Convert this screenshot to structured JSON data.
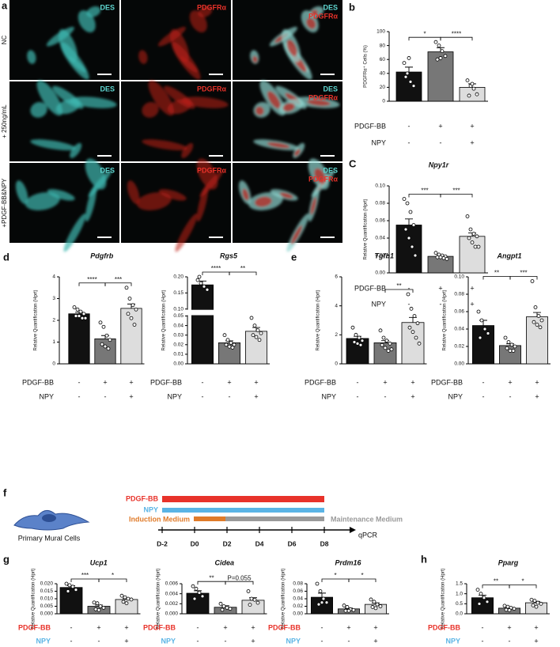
{
  "panel_labels": [
    "a",
    "b",
    "C",
    "d",
    "e",
    "f",
    "g",
    "h"
  ],
  "images": {
    "row_labels": [
      "NC",
      "+ 250ng/mL",
      "+PDGF-BB&NPY"
    ],
    "channels": [
      {
        "name": "DES",
        "color": "#5fd6d0"
      },
      {
        "name": "PDGFRα",
        "color": "#e8322a"
      }
    ]
  },
  "timeline": {
    "treatments": [
      {
        "name": "PDGF-BB",
        "color": "#e8322a"
      },
      {
        "name": "NPY",
        "color": "#5ab4e5"
      }
    ],
    "media": [
      {
        "name": "Induction Medium",
        "color": "#e07b2a"
      },
      {
        "name": "Maintenance Medium",
        "color": "#9a9a9a"
      }
    ],
    "days": [
      "D-2",
      "D0",
      "D2",
      "D4",
      "D6",
      "D8"
    ],
    "endpoint": "qPCR",
    "cell_label": "Primary Mural Cells"
  },
  "chart_data": [
    {
      "type": "bar",
      "ylabel": "PDGFRα⁺ Cells (%)",
      "colors": [
        "#111111",
        "#777777",
        "#dddddd"
      ],
      "values": [
        42,
        71,
        20
      ],
      "errors": [
        7,
        6,
        5
      ],
      "points": [
        [
          55,
          40,
          28,
          22,
          35,
          62
        ],
        [
          85,
          80,
          72,
          65,
          60,
          62
        ],
        [
          30,
          22,
          18,
          10,
          8,
          25
        ]
      ],
      "ylim": [
        0,
        100
      ],
      "yticks": [
        0,
        20,
        40,
        60,
        80,
        100
      ],
      "significance": [
        "*",
        "****"
      ],
      "conditions": [
        {
          "name": "PDGF-BB",
          "values": [
            "-",
            "+",
            "+"
          ]
        },
        {
          "name": "NPY",
          "values": [
            "-",
            "-",
            "+"
          ]
        }
      ]
    },
    {
      "type": "bar",
      "title": "Npy1r",
      "ylabel": "Relative Quantification (Hprt)",
      "colors": [
        "#111111",
        "#777777",
        "#dddddd"
      ],
      "values": [
        0.055,
        0.019,
        0.042
      ],
      "errors": [
        0.007,
        0.001,
        0.004
      ],
      "points": [
        [
          0.085,
          0.08,
          0.07,
          0.055,
          0.05,
          0.04,
          0.03,
          0.02
        ],
        [
          0.023,
          0.021,
          0.02,
          0.019,
          0.018,
          0.018,
          0.017,
          0.016
        ],
        [
          0.065,
          0.05,
          0.045,
          0.042,
          0.04,
          0.035,
          0.03,
          0.03
        ]
      ],
      "ylim": [
        0,
        0.1
      ],
      "yticks": [
        {
          "value": 0,
          "label": "0.00"
        },
        0.02,
        0.04,
        0.06,
        0.08,
        {
          "value": 0.1,
          "label": "0.10"
        }
      ],
      "significance": [
        "***",
        "***"
      ],
      "conditions": [
        {
          "name": "PDGF-BB",
          "values": [
            "-",
            "+",
            "+"
          ]
        },
        {
          "name": "NPY",
          "values": [
            "-",
            "-",
            "+"
          ]
        }
      ]
    },
    {
      "type": "bar",
      "title": "Pdgfrb",
      "ylabel": "Relative Quantification (Hprt)",
      "colors": [
        "#111111",
        "#777777",
        "#dddddd"
      ],
      "values": [
        2.3,
        1.15,
        2.55
      ],
      "errors": [
        0.07,
        0.15,
        0.2
      ],
      "points": [
        [
          2.6,
          2.5,
          2.4,
          2.3,
          2.2,
          2.2,
          2.1,
          2.1
        ],
        [
          1.9,
          1.7,
          1.3,
          1.1,
          0.9,
          0.8,
          0.7
        ],
        [
          3.5,
          3.0,
          2.7,
          2.5,
          2.3,
          2.1,
          1.8
        ]
      ],
      "ylim": [
        0,
        4
      ],
      "yticks": [
        0,
        1,
        2,
        3,
        4
      ],
      "significance": [
        "****",
        "***"
      ],
      "conditions": [
        {
          "name": "PDGF-BB",
          "values": [
            "-",
            "+",
            "+"
          ]
        },
        {
          "name": "NPY",
          "values": [
            "-",
            "-",
            "+"
          ]
        }
      ]
    },
    {
      "type": "bar",
      "title": "Rgs5",
      "ylabel": "Relative Quantification (Hprt)",
      "colors": [
        "#111111",
        "#777777",
        "#dddddd"
      ],
      "values": [
        0.175,
        0.022,
        0.034
      ],
      "errors": [
        0.012,
        0.002,
        0.004
      ],
      "points": [
        [
          0.19,
          0.18,
          0.17,
          0.16,
          0.2
        ],
        [
          0.03,
          0.025,
          0.022,
          0.02,
          0.02,
          0.018,
          0.017
        ],
        [
          0.048,
          0.04,
          0.035,
          0.032,
          0.03,
          0.028,
          0.025
        ]
      ],
      "ylim": [
        0,
        0.2
      ],
      "ybreak": [
        0.05,
        0.1
      ],
      "yticks": [
        {
          "value": 0,
          "label": "0.00"
        },
        0.01,
        0.02,
        0.03,
        0.04,
        0.05,
        {
          "value": 0.1,
          "label": "0.10"
        },
        0.15,
        {
          "value": 0.2,
          "label": "0.20"
        }
      ],
      "significance": [
        "****",
        "**"
      ],
      "conditions": [
        {
          "name": "PDGF-BB",
          "values": [
            "-",
            "+",
            "+"
          ]
        },
        {
          "name": "NPY",
          "values": [
            "-",
            "-",
            "+"
          ]
        }
      ]
    },
    {
      "type": "bar",
      "title": "Tgfb1",
      "ylabel": "Relative Quantification (Hprt)",
      "colors": [
        "#111111",
        "#777777",
        "#dddddd"
      ],
      "values": [
        1.75,
        1.45,
        2.85
      ],
      "errors": [
        0.15,
        0.15,
        0.35
      ],
      "points": [
        [
          2.5,
          2.0,
          1.8,
          1.6,
          1.5,
          1.4,
          1.3
        ],
        [
          2.3,
          1.8,
          1.6,
          1.4,
          1.3,
          1.1,
          0.9,
          1.0
        ],
        [
          4.8,
          3.8,
          3.3,
          2.8,
          2.5,
          2.2,
          1.8,
          1.4
        ]
      ],
      "ylim": [
        0,
        6
      ],
      "yticks": [
        0,
        2,
        4,
        6
      ],
      "significance": [
        null,
        "**"
      ],
      "conditions": [
        {
          "name": "PDGF-BB",
          "values": [
            "-",
            "+",
            "+"
          ]
        },
        {
          "name": "NPY",
          "values": [
            "-",
            "-",
            "+"
          ]
        }
      ]
    },
    {
      "type": "bar",
      "title": "Angpt1",
      "ylabel": "Relative Quantification (Hprt)",
      "colors": [
        "#111111",
        "#777777",
        "#dddddd"
      ],
      "values": [
        0.044,
        0.021,
        0.054
      ],
      "errors": [
        0.006,
        0.002,
        0.005
      ],
      "points": [
        [
          0.06,
          0.05,
          0.04,
          0.035,
          0.03
        ],
        [
          0.03,
          0.025,
          0.022,
          0.02,
          0.018,
          0.015,
          0.015
        ],
        [
          0.095,
          0.065,
          0.055,
          0.05,
          0.048,
          0.045,
          0.042
        ]
      ],
      "ylim": [
        0,
        0.1
      ],
      "yticks": [
        {
          "value": 0,
          "label": "0.00"
        },
        0.02,
        0.04,
        0.06,
        0.08,
        {
          "value": 0.1,
          "label": "0.10"
        }
      ],
      "significance": [
        "**",
        "***"
      ],
      "conditions": [
        {
          "name": "PDGF-BB",
          "values": [
            "-",
            "+",
            "+"
          ]
        },
        {
          "name": "NPY",
          "values": [
            "-",
            "-",
            "+"
          ]
        }
      ]
    },
    {
      "type": "bar",
      "title": "Ucp1",
      "ylabel": "Relative Quantification (Hprt)",
      "colors": [
        "#111111",
        "#777777",
        "#dddddd"
      ],
      "values": [
        0.0175,
        0.005,
        0.0095
      ],
      "errors": [
        0.0012,
        0.0008,
        0.0008
      ],
      "points": [
        [
          0.02,
          0.019,
          0.018,
          0.016,
          0.015
        ],
        [
          0.0075,
          0.007,
          0.005,
          0.004,
          0.003,
          0.0025
        ],
        [
          0.012,
          0.011,
          0.01,
          0.0095,
          0.008,
          0.007
        ]
      ],
      "ylim": [
        0,
        0.02
      ],
      "yticks": [
        {
          "value": 0,
          "label": "0.000"
        },
        0.005,
        {
          "value": 0.01,
          "label": "0.010"
        },
        0.015,
        {
          "value": 0.02,
          "label": "0.020"
        }
      ],
      "significance": [
        "***",
        "*"
      ],
      "conditions": [
        {
          "name": "PDGF-BB",
          "color": "#e8322a",
          "values": [
            "-",
            "+",
            "+"
          ]
        },
        {
          "name": "NPY",
          "color": "#5ab4e5",
          "values": [
            "-",
            "-",
            "+"
          ]
        }
      ]
    },
    {
      "type": "bar",
      "title": "Cidea",
      "ylabel": "Relative Quantification (Hprt)",
      "colors": [
        "#111111",
        "#777777",
        "#dddddd"
      ],
      "values": [
        0.0041,
        0.0013,
        0.0027
      ],
      "errors": [
        0.0005,
        0.0003,
        0.0005
      ],
      "points": [
        [
          0.0055,
          0.005,
          0.0042,
          0.0035,
          0.003
        ],
        [
          0.002,
          0.0015,
          0.0012,
          0.001,
          0.0008
        ],
        [
          0.0045,
          0.003,
          0.0028,
          0.0022,
          0.0018
        ]
      ],
      "ylim": [
        0,
        0.006
      ],
      "yticks": [
        {
          "value": 0,
          "label": "0.000"
        },
        0.002,
        0.004,
        0.006
      ],
      "significance": [
        "**",
        "P=0.055"
      ],
      "conditions": [
        {
          "name": "PDGF-BB",
          "color": "#e8322a",
          "values": [
            "-",
            "+",
            "+"
          ]
        },
        {
          "name": "NPY",
          "color": "#5ab4e5",
          "values": [
            "-",
            "-",
            "+"
          ]
        }
      ]
    },
    {
      "type": "bar",
      "title": "Prdm16",
      "ylabel": "Relative Quantification (Hprt)",
      "colors": [
        "#111111",
        "#777777",
        "#dddddd"
      ],
      "values": [
        0.044,
        0.013,
        0.025
      ],
      "errors": [
        0.011,
        0.002,
        0.004
      ],
      "points": [
        [
          0.08,
          0.06,
          0.04,
          0.03,
          0.025,
          0.03
        ],
        [
          0.022,
          0.018,
          0.012,
          0.01,
          0.008,
          0.008
        ],
        [
          0.038,
          0.032,
          0.025,
          0.02,
          0.018,
          0.015
        ]
      ],
      "ylim": [
        0,
        0.08
      ],
      "yticks": [
        {
          "value": 0,
          "label": "0.00"
        },
        0.02,
        0.04,
        0.06,
        0.08
      ],
      "significance": [
        "*",
        "*"
      ],
      "conditions": [
        {
          "name": "PDGF-BB",
          "color": "#e8322a",
          "values": [
            "-",
            "+",
            "+"
          ]
        },
        {
          "name": "NPY",
          "color": "#5ab4e5",
          "values": [
            "-",
            "-",
            "+"
          ]
        }
      ]
    },
    {
      "type": "bar",
      "title": "Pparg",
      "ylabel": "Relative Quantification (Hprt)",
      "colors": [
        "#111111",
        "#777777",
        "#dddddd"
      ],
      "values": [
        0.8,
        0.28,
        0.55
      ],
      "errors": [
        0.13,
        0.04,
        0.07
      ],
      "points": [
        [
          1.2,
          1.0,
          0.8,
          0.6,
          0.5
        ],
        [
          0.4,
          0.35,
          0.3,
          0.25,
          0.2,
          0.18
        ],
        [
          0.7,
          0.65,
          0.55,
          0.5,
          0.42,
          0.35
        ]
      ],
      "ylim": [
        0,
        1.5
      ],
      "yticks": [
        {
          "value": 0,
          "label": "0.0"
        },
        0.5,
        {
          "value": 1,
          "label": "1.0"
        },
        1.5
      ],
      "significance": [
        "**",
        "*"
      ],
      "conditions": [
        {
          "name": "PDGF-BB",
          "color": "#e8322a",
          "values": [
            "-",
            "+",
            "+"
          ]
        },
        {
          "name": "NPY",
          "color": "#5ab4e5",
          "values": [
            "-",
            "-",
            "+"
          ]
        }
      ]
    }
  ]
}
